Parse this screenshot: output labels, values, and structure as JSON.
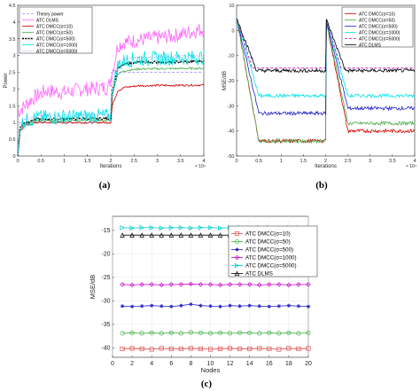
{
  "chart_data": [
    {
      "type": "line",
      "caption": "(a)",
      "xlabel": "Iterations",
      "ylabel": "Power",
      "xlim": [
        0,
        40000
      ],
      "ylim": [
        0,
        4.5
      ],
      "x_ticks": [
        "0",
        "0.5",
        "1",
        "1.5",
        "2",
        "2.5",
        "3",
        "3.5",
        "4"
      ],
      "y_ticks": [
        "0",
        "0.5",
        "1",
        "1.5",
        "2",
        "2.5",
        "3",
        "3.5",
        "4",
        "4.5"
      ],
      "x_exponent": "× 10⁴",
      "legend_position": "top-left",
      "series": [
        {
          "name": "Theory power",
          "color": "#9999ff",
          "style": "dashed",
          "points": [
            [
              0,
              1.0
            ],
            [
              20000,
              1.0
            ],
            [
              20000,
              2.5
            ],
            [
              40000,
              2.5
            ]
          ]
        },
        {
          "name": "ATC DLMS",
          "color": "#ff66ff",
          "style": "noisy",
          "points": [
            [
              0,
              1.3
            ],
            [
              3000,
              1.7
            ],
            [
              6000,
              1.95
            ],
            [
              10000,
              1.9
            ],
            [
              14000,
              2.0
            ],
            [
              19500,
              2.05
            ],
            [
              20500,
              2.6
            ],
            [
              21500,
              3.3
            ],
            [
              23000,
              3.4
            ],
            [
              28000,
              3.5
            ],
            [
              34000,
              3.6
            ],
            [
              40000,
              3.8
            ]
          ]
        },
        {
          "name": "ATC DMCC(σ=10)",
          "color": "#d40000",
          "style": "solid",
          "points": [
            [
              0,
              0.0
            ],
            [
              500,
              0.75
            ],
            [
              1500,
              0.9
            ],
            [
              4000,
              1.0
            ],
            [
              20000,
              1.0
            ],
            [
              20300,
              1.5
            ],
            [
              21500,
              1.95
            ],
            [
              23000,
              2.05
            ],
            [
              26000,
              2.1
            ],
            [
              40000,
              2.12
            ]
          ]
        },
        {
          "name": "ATC DMCC(σ=50)",
          "color": "#4caf50",
          "style": "solid",
          "points": [
            [
              0,
              0.0
            ],
            [
              500,
              0.8
            ],
            [
              1500,
              0.95
            ],
            [
              4000,
              1.05
            ],
            [
              20000,
              1.07
            ],
            [
              20300,
              1.8
            ],
            [
              21500,
              2.45
            ],
            [
              23000,
              2.55
            ],
            [
              26000,
              2.6
            ],
            [
              40000,
              2.62
            ]
          ]
        },
        {
          "name": "ATC DMCC(σ=500)",
          "color": "#000000",
          "style": "thick-dashed",
          "points": [
            [
              0,
              0.0
            ],
            [
              500,
              0.85
            ],
            [
              1500,
              1.0
            ],
            [
              4000,
              1.1
            ],
            [
              20000,
              1.12
            ],
            [
              20300,
              1.9
            ],
            [
              21500,
              2.6
            ],
            [
              23000,
              2.75
            ],
            [
              26000,
              2.8
            ],
            [
              40000,
              2.82
            ]
          ]
        },
        {
          "name": "ATC DMCC(σ=1000)",
          "color": "#00e5e5",
          "style": "noisy",
          "points": [
            [
              0,
              0.0
            ],
            [
              500,
              0.9
            ],
            [
              1500,
              1.05
            ],
            [
              4000,
              1.15
            ],
            [
              20000,
              1.2
            ],
            [
              20300,
              2.0
            ],
            [
              21500,
              2.7
            ],
            [
              23000,
              2.85
            ],
            [
              26000,
              2.9
            ],
            [
              40000,
              2.95
            ]
          ]
        },
        {
          "name": "ATC DMCC(σ=5000)",
          "color": "#9999ff",
          "style": "dotted",
          "points": [
            [
              0,
              0.0
            ],
            [
              500,
              0.95
            ],
            [
              1500,
              1.1
            ],
            [
              4000,
              1.2
            ],
            [
              20000,
              1.25
            ],
            [
              20300,
              2.1
            ],
            [
              21500,
              2.8
            ],
            [
              23000,
              2.9
            ],
            [
              26000,
              2.95
            ],
            [
              40000,
              3.0
            ]
          ]
        }
      ]
    },
    {
      "type": "line",
      "caption": "(b)",
      "xlabel": "Iterations",
      "ylabel": "MSE/dB",
      "xlim": [
        0,
        40000
      ],
      "ylim": [
        -50,
        10
      ],
      "x_ticks": [
        "0",
        "0.5",
        "1",
        "1.5",
        "2",
        "2.5",
        "3",
        "3.5",
        "4"
      ],
      "y_ticks": [
        "10",
        "0",
        "-10",
        "-20",
        "-30",
        "-40",
        "-50"
      ],
      "x_exponent": "× 10⁴",
      "legend_position": "top-right",
      "series": [
        {
          "name": "ATC DMCC(σ=10)",
          "color": "#d40000",
          "style": "solid",
          "points": [
            [
              0,
              5
            ],
            [
              5000,
              -44
            ],
            [
              20000,
              -44
            ],
            [
              20000,
              5
            ],
            [
              25000,
              -40
            ],
            [
              40000,
              -40
            ]
          ]
        },
        {
          "name": "ATC DMCC(σ=50)",
          "color": "#4caf50",
          "style": "solid",
          "points": [
            [
              0,
              5
            ],
            [
              5000,
              -44
            ],
            [
              20000,
              -44
            ],
            [
              20000,
              5
            ],
            [
              25000,
              -37
            ],
            [
              40000,
              -37
            ]
          ]
        },
        {
          "name": "ATC DMCC(σ=500)",
          "color": "#1f1fcc",
          "style": "solid",
          "points": [
            [
              0,
              5
            ],
            [
              5000,
              -33
            ],
            [
              20000,
              -33
            ],
            [
              20000,
              5
            ],
            [
              25000,
              -31
            ],
            [
              40000,
              -31
            ]
          ]
        },
        {
          "name": "ATC DMCC(σ=1000)",
          "color": "#00e5e5",
          "style": "solid",
          "points": [
            [
              0,
              5
            ],
            [
              5000,
              -26
            ],
            [
              20000,
              -26
            ],
            [
              20000,
              5
            ],
            [
              25000,
              -26
            ],
            [
              40000,
              -26
            ]
          ]
        },
        {
          "name": "ATC DMCC(σ=5000)",
          "color": "#cc00cc",
          "style": "dashed",
          "points": [
            [
              0,
              5
            ],
            [
              3500,
              -15
            ],
            [
              20000,
              -15
            ],
            [
              20000,
              5
            ],
            [
              23500,
              -15
            ],
            [
              40000,
              -15
            ]
          ]
        },
        {
          "name": "ATC DLMS",
          "color": "#000000",
          "style": "solid",
          "points": [
            [
              0,
              5
            ],
            [
              4500,
              -16
            ],
            [
              20000,
              -16
            ],
            [
              20000,
              5
            ],
            [
              24500,
              -16
            ],
            [
              40000,
              -16
            ]
          ]
        }
      ]
    },
    {
      "type": "line",
      "caption": "(c)",
      "xlabel": "Nodes",
      "ylabel": "MSE/dB",
      "xlim": [
        0,
        20
      ],
      "ylim": [
        -42,
        -12
      ],
      "x_ticks": [
        "0",
        "2",
        "4",
        "6",
        "8",
        "10",
        "12",
        "14",
        "16",
        "18",
        "20"
      ],
      "y_ticks": [
        "-15",
        "-20",
        "-25",
        "-30",
        "-35",
        "-40"
      ],
      "legend_position": "right-center",
      "series": [
        {
          "name": "ATC DMCC(σ=10)",
          "color": "#e05050",
          "marker": "square",
          "x": [
            1,
            2,
            3,
            4,
            5,
            6,
            7,
            8,
            9,
            10,
            11,
            12,
            13,
            14,
            15,
            16,
            17,
            18,
            19,
            20
          ],
          "values": [
            -40.2,
            -40.1,
            -40.2,
            -40.3,
            -40.1,
            -40.2,
            -40.2,
            -40.1,
            -40.2,
            -40.3,
            -40.2,
            -40.1,
            -40.2,
            -40.2,
            -40.1,
            -40.2,
            -40.3,
            -40.1,
            -40.2,
            -40.1
          ]
        },
        {
          "name": "ATC DMCC(σ=50)",
          "color": "#3cb043",
          "marker": "circle",
          "x": [
            1,
            2,
            3,
            4,
            5,
            6,
            7,
            8,
            9,
            10,
            11,
            12,
            13,
            14,
            15,
            16,
            17,
            18,
            19,
            20
          ],
          "values": [
            -36.9,
            -36.8,
            -36.9,
            -36.8,
            -36.9,
            -36.8,
            -36.9,
            -36.7,
            -36.8,
            -36.9,
            -36.8,
            -36.9,
            -36.8,
            -36.8,
            -36.9,
            -36.8,
            -36.9,
            -36.8,
            -36.9,
            -36.8
          ]
        },
        {
          "name": "ATC DMCC(σ=500)",
          "color": "#1f1fcc",
          "marker": "star",
          "x": [
            1,
            2,
            3,
            4,
            5,
            6,
            7,
            8,
            9,
            10,
            11,
            12,
            13,
            14,
            15,
            16,
            17,
            18,
            19,
            20
          ],
          "values": [
            -31.1,
            -31.2,
            -31.1,
            -31.0,
            -31.1,
            -31.2,
            -31.0,
            -30.7,
            -31.0,
            -31.1,
            -31.2,
            -31.0,
            -31.1,
            -31.0,
            -31.1,
            -31.2,
            -31.1,
            -31.0,
            -31.1,
            -31.2
          ]
        },
        {
          "name": "ATC DMCC(σ=1000)",
          "color": "#cc00cc",
          "marker": "diamond",
          "x": [
            1,
            2,
            3,
            4,
            5,
            6,
            7,
            8,
            9,
            10,
            11,
            12,
            13,
            14,
            15,
            16,
            17,
            18,
            19,
            20
          ],
          "values": [
            -26.5,
            -26.6,
            -26.5,
            -26.5,
            -26.6,
            -26.5,
            -26.5,
            -26.4,
            -26.5,
            -26.5,
            -26.6,
            -26.5,
            -26.5,
            -26.5,
            -26.6,
            -26.5,
            -26.5,
            -26.6,
            -26.5,
            -26.5
          ]
        },
        {
          "name": "ATC DMCC(σ=5000)",
          "color": "#00cccc",
          "marker": "triangle-right",
          "x": [
            1,
            2,
            3,
            4,
            5,
            6,
            7,
            8,
            9,
            10,
            11,
            12,
            13,
            14,
            15,
            16,
            17,
            18,
            19,
            20
          ],
          "values": [
            -14.4,
            -14.5,
            -14.4,
            -14.4,
            -14.5,
            -14.4,
            -14.4,
            -14.5,
            -14.4,
            -14.4,
            -14.5,
            -14.4,
            -14.4,
            -14.5,
            -14.4,
            -14.4,
            -14.5,
            -14.4,
            -14.4,
            -14.5
          ]
        },
        {
          "name": "ATC DLMS",
          "color": "#000000",
          "marker": "triangle-up",
          "x": [
            1,
            2,
            3,
            4,
            5,
            6,
            7,
            8,
            9,
            10,
            11,
            12,
            13,
            14,
            15,
            16,
            17,
            18,
            19,
            20
          ],
          "values": [
            -16.0,
            -16.0,
            -16.0,
            -16.0,
            -16.0,
            -16.0,
            -16.0,
            -16.0,
            -16.0,
            -16.0,
            -16.0,
            -16.0,
            -16.0,
            -16.0,
            -16.0,
            -16.0,
            -16.0,
            -16.0,
            -16.0,
            -16.0
          ]
        }
      ]
    }
  ]
}
